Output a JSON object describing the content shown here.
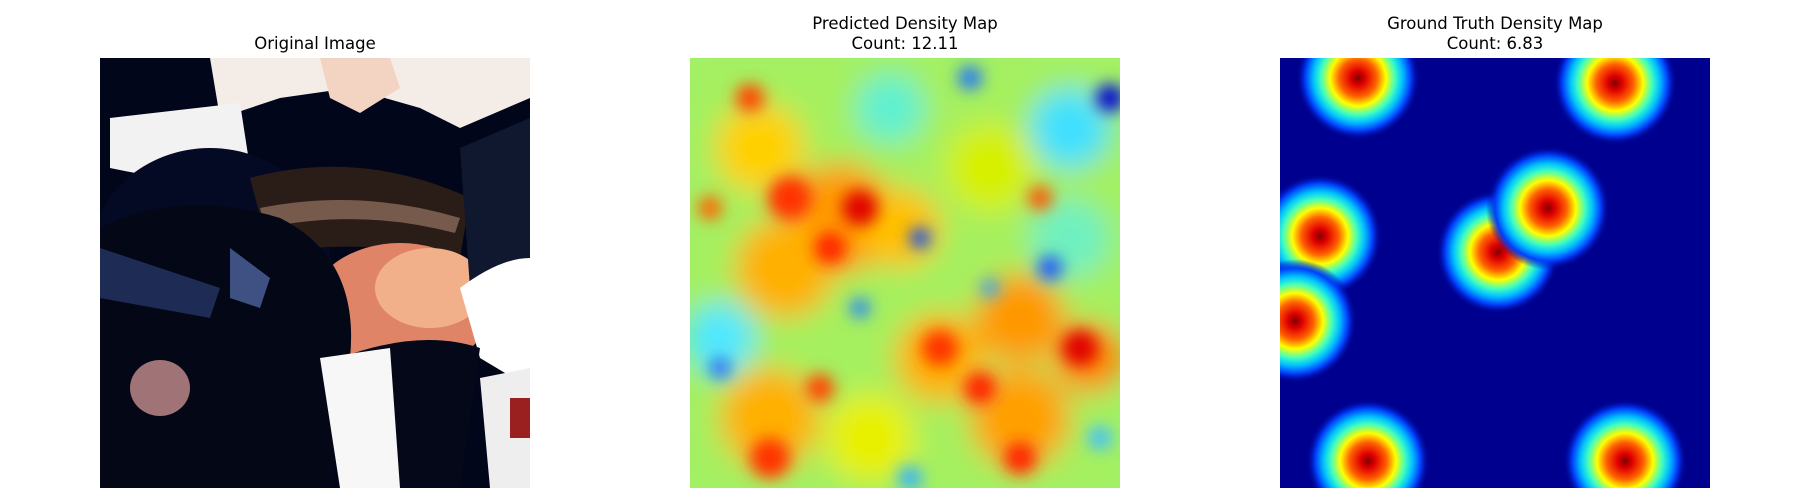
{
  "panels": [
    {
      "title": "Original Image",
      "subtitle": ""
    },
    {
      "title": "Predicted Density Map",
      "subtitle": "Count: 12.11"
    },
    {
      "title": "Ground Truth Density Map",
      "subtitle": "Count: 6.83"
    }
  ],
  "colors": {
    "jet_low": "#00008f",
    "jet_mid_low": "#00ffff",
    "jet_mid": "#ffff00",
    "jet_high": "#ff0000",
    "jet_max": "#800000"
  }
}
